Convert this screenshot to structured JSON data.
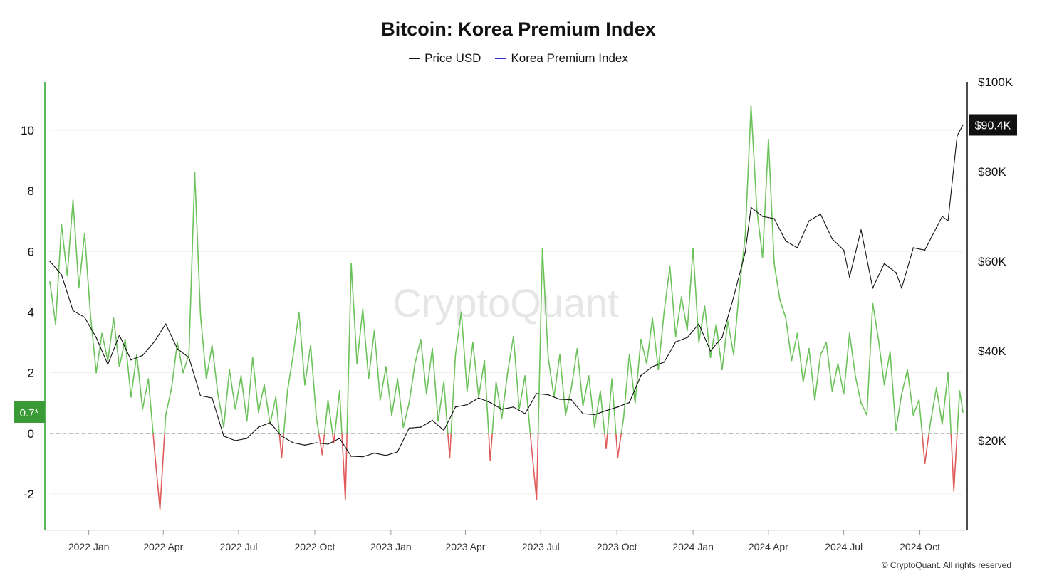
{
  "chart_data": {
    "type": "line",
    "title": "Bitcoin: Korea Premium Index",
    "watermark": "CryptoQuant",
    "footer": "© CryptoQuant. All rights reserved",
    "legend": [
      {
        "label": "Price USD",
        "color": "#111111"
      },
      {
        "label": "Korea Premium Index",
        "color": "#2b2bd6"
      }
    ],
    "legend_position": "top-center",
    "x_range": [
      "2021-11-15",
      "2024-11-22"
    ],
    "x_ticks": [
      {
        "date": "2022-01-01",
        "label": "2022 Jan"
      },
      {
        "date": "2022-04-01",
        "label": "2022 Apr"
      },
      {
        "date": "2022-07-01",
        "label": "2022 Jul"
      },
      {
        "date": "2022-10-01",
        "label": "2022 Oct"
      },
      {
        "date": "2023-01-01",
        "label": "2023 Jan"
      },
      {
        "date": "2023-04-01",
        "label": "2023 Apr"
      },
      {
        "date": "2023-07-01",
        "label": "2023 Jul"
      },
      {
        "date": "2023-10-01",
        "label": "2023 Oct"
      },
      {
        "date": "2024-01-01",
        "label": "2024 Jan"
      },
      {
        "date": "2024-04-01",
        "label": "2024 Apr"
      },
      {
        "date": "2024-07-01",
        "label": "2024 Jul"
      },
      {
        "date": "2024-10-01",
        "label": "2024 Oct"
      }
    ],
    "y_left": {
      "range": [
        -3.2,
        11.6
      ],
      "ticks": [
        {
          "v": 10,
          "label": "10"
        },
        {
          "v": 8,
          "label": "8"
        },
        {
          "v": 6,
          "label": "6"
        },
        {
          "v": 4,
          "label": "4"
        },
        {
          "v": 2,
          "label": "2"
        },
        {
          "v": 0,
          "label": "0"
        },
        {
          "v": -2,
          "label": "-2"
        }
      ],
      "axis_color": "#5cb85c"
    },
    "y_right": {
      "range": [
        0,
        100000
      ],
      "ticks": [
        {
          "v": 100000,
          "label": "$100K"
        },
        {
          "v": 80000,
          "label": "$80K"
        },
        {
          "v": 60000,
          "label": "$60K"
        },
        {
          "v": 40000,
          "label": "$40K"
        },
        {
          "v": 20000,
          "label": "$20K"
        }
      ],
      "axis_color": "#111111"
    },
    "last_premium_label": "0.7*",
    "last_price_label": "$90.4K",
    "colors": {
      "positive": "#6cc25a",
      "negative": "#e05a5a",
      "price": "#111111",
      "grid": "#f0f0f0",
      "zero_line": "#aaaaaa",
      "badge_premium": "#3a9a35",
      "badge_price": "#111111"
    },
    "grid": true,
    "series": [
      {
        "name": "Korea Premium Index",
        "points": [
          [
            "2021-11-15",
            5.0
          ],
          [
            "2021-11-22",
            3.6
          ],
          [
            "2021-11-29",
            6.9
          ],
          [
            "2021-12-06",
            5.2
          ],
          [
            "2021-12-13",
            7.7
          ],
          [
            "2021-12-20",
            4.8
          ],
          [
            "2021-12-27",
            6.6
          ],
          [
            "2022-01-03",
            3.9
          ],
          [
            "2022-01-10",
            2.0
          ],
          [
            "2022-01-17",
            3.3
          ],
          [
            "2022-01-24",
            2.4
          ],
          [
            "2022-01-31",
            3.8
          ],
          [
            "2022-02-07",
            2.2
          ],
          [
            "2022-02-14",
            3.1
          ],
          [
            "2022-02-21",
            1.2
          ],
          [
            "2022-02-28",
            2.6
          ],
          [
            "2022-03-07",
            0.8
          ],
          [
            "2022-03-14",
            1.8
          ],
          [
            "2022-03-21",
            -0.4
          ],
          [
            "2022-03-28",
            -2.5
          ],
          [
            "2022-04-04",
            0.6
          ],
          [
            "2022-04-11",
            1.5
          ],
          [
            "2022-04-18",
            3.0
          ],
          [
            "2022-04-25",
            2.0
          ],
          [
            "2022-05-02",
            2.6
          ],
          [
            "2022-05-09",
            8.6
          ],
          [
            "2022-05-16",
            3.9
          ],
          [
            "2022-05-23",
            1.8
          ],
          [
            "2022-05-30",
            2.9
          ],
          [
            "2022-06-06",
            1.3
          ],
          [
            "2022-06-13",
            0.2
          ],
          [
            "2022-06-20",
            2.1
          ],
          [
            "2022-06-27",
            0.8
          ],
          [
            "2022-07-04",
            1.9
          ],
          [
            "2022-07-11",
            0.4
          ],
          [
            "2022-07-18",
            2.5
          ],
          [
            "2022-07-25",
            0.7
          ],
          [
            "2022-08-01",
            1.6
          ],
          [
            "2022-08-08",
            0.3
          ],
          [
            "2022-08-15",
            1.2
          ],
          [
            "2022-08-22",
            -0.8
          ],
          [
            "2022-08-29",
            1.4
          ],
          [
            "2022-09-05",
            2.6
          ],
          [
            "2022-09-12",
            4.0
          ],
          [
            "2022-09-19",
            1.6
          ],
          [
            "2022-09-26",
            2.9
          ],
          [
            "2022-10-03",
            0.5
          ],
          [
            "2022-10-10",
            -0.7
          ],
          [
            "2022-10-17",
            1.1
          ],
          [
            "2022-10-24",
            -0.3
          ],
          [
            "2022-10-31",
            1.4
          ],
          [
            "2022-11-07",
            -2.2
          ],
          [
            "2022-11-14",
            5.6
          ],
          [
            "2022-11-21",
            2.3
          ],
          [
            "2022-11-28",
            4.1
          ],
          [
            "2022-12-05",
            1.8
          ],
          [
            "2022-12-12",
            3.4
          ],
          [
            "2022-12-19",
            1.1
          ],
          [
            "2022-12-26",
            2.2
          ],
          [
            "2023-01-02",
            0.6
          ],
          [
            "2023-01-09",
            1.8
          ],
          [
            "2023-01-16",
            0.2
          ],
          [
            "2023-01-23",
            1.0
          ],
          [
            "2023-01-30",
            2.3
          ],
          [
            "2023-02-06",
            3.1
          ],
          [
            "2023-02-13",
            1.3
          ],
          [
            "2023-02-20",
            2.8
          ],
          [
            "2023-02-27",
            0.4
          ],
          [
            "2023-03-06",
            1.7
          ],
          [
            "2023-03-13",
            -0.8
          ],
          [
            "2023-03-20",
            2.6
          ],
          [
            "2023-03-27",
            4.0
          ],
          [
            "2023-04-03",
            1.4
          ],
          [
            "2023-04-10",
            3.0
          ],
          [
            "2023-04-17",
            1.2
          ],
          [
            "2023-04-24",
            2.4
          ],
          [
            "2023-05-01",
            -0.9
          ],
          [
            "2023-05-08",
            1.7
          ],
          [
            "2023-05-15",
            0.5
          ],
          [
            "2023-05-22",
            2.0
          ],
          [
            "2023-05-29",
            3.2
          ],
          [
            "2023-06-05",
            0.8
          ],
          [
            "2023-06-12",
            1.9
          ],
          [
            "2023-06-19",
            -0.2
          ],
          [
            "2023-06-26",
            -2.2
          ],
          [
            "2023-07-03",
            6.1
          ],
          [
            "2023-07-10",
            2.5
          ],
          [
            "2023-07-17",
            1.2
          ],
          [
            "2023-07-24",
            2.6
          ],
          [
            "2023-07-31",
            0.6
          ],
          [
            "2023-08-07",
            1.5
          ],
          [
            "2023-08-14",
            2.8
          ],
          [
            "2023-08-21",
            0.9
          ],
          [
            "2023-08-28",
            1.9
          ],
          [
            "2023-09-04",
            0.2
          ],
          [
            "2023-09-11",
            1.4
          ],
          [
            "2023-09-18",
            -0.5
          ],
          [
            "2023-09-25",
            1.8
          ],
          [
            "2023-10-02",
            -0.8
          ],
          [
            "2023-10-09",
            0.5
          ],
          [
            "2023-10-16",
            2.6
          ],
          [
            "2023-10-23",
            1.0
          ],
          [
            "2023-10-30",
            3.1
          ],
          [
            "2023-11-06",
            2.3
          ],
          [
            "2023-11-13",
            3.8
          ],
          [
            "2023-11-20",
            2.1
          ],
          [
            "2023-11-27",
            4.0
          ],
          [
            "2023-12-04",
            5.5
          ],
          [
            "2023-12-11",
            3.2
          ],
          [
            "2023-12-18",
            4.5
          ],
          [
            "2023-12-25",
            3.4
          ],
          [
            "2024-01-01",
            6.1
          ],
          [
            "2024-01-08",
            3.0
          ],
          [
            "2024-01-15",
            4.2
          ],
          [
            "2024-01-22",
            2.5
          ],
          [
            "2024-01-29",
            3.6
          ],
          [
            "2024-02-05",
            2.1
          ],
          [
            "2024-02-12",
            3.7
          ],
          [
            "2024-02-19",
            2.6
          ],
          [
            "2024-02-26",
            4.8
          ],
          [
            "2024-03-04",
            6.5
          ],
          [
            "2024-03-11",
            10.8
          ],
          [
            "2024-03-18",
            7.4
          ],
          [
            "2024-03-25",
            5.8
          ],
          [
            "2024-04-01",
            9.7
          ],
          [
            "2024-04-08",
            5.6
          ],
          [
            "2024-04-15",
            4.4
          ],
          [
            "2024-04-22",
            3.8
          ],
          [
            "2024-04-29",
            2.4
          ],
          [
            "2024-05-06",
            3.3
          ],
          [
            "2024-05-13",
            1.7
          ],
          [
            "2024-05-20",
            2.8
          ],
          [
            "2024-05-27",
            1.1
          ],
          [
            "2024-06-03",
            2.6
          ],
          [
            "2024-06-10",
            3.0
          ],
          [
            "2024-06-17",
            1.4
          ],
          [
            "2024-06-24",
            2.3
          ],
          [
            "2024-07-01",
            1.3
          ],
          [
            "2024-07-08",
            3.3
          ],
          [
            "2024-07-15",
            1.9
          ],
          [
            "2024-07-22",
            1.0
          ],
          [
            "2024-07-29",
            0.6
          ],
          [
            "2024-08-05",
            4.3
          ],
          [
            "2024-08-12",
            3.1
          ],
          [
            "2024-08-19",
            1.6
          ],
          [
            "2024-08-26",
            2.7
          ],
          [
            "2024-09-02",
            0.1
          ],
          [
            "2024-09-09",
            1.3
          ],
          [
            "2024-09-16",
            2.1
          ],
          [
            "2024-09-23",
            0.6
          ],
          [
            "2024-09-30",
            1.1
          ],
          [
            "2024-10-07",
            -1.0
          ],
          [
            "2024-10-14",
            0.4
          ],
          [
            "2024-10-21",
            1.5
          ],
          [
            "2024-10-28",
            0.3
          ],
          [
            "2024-11-04",
            2.0
          ],
          [
            "2024-11-11",
            -1.9
          ],
          [
            "2024-11-18",
            1.4
          ],
          [
            "2024-11-22",
            0.7
          ]
        ]
      },
      {
        "name": "Price USD",
        "points": [
          [
            "2021-11-15",
            60000
          ],
          [
            "2021-11-29",
            57000
          ],
          [
            "2021-12-13",
            49000
          ],
          [
            "2021-12-27",
            47500
          ],
          [
            "2022-01-10",
            43000
          ],
          [
            "2022-01-24",
            37000
          ],
          [
            "2022-02-07",
            43500
          ],
          [
            "2022-02-21",
            38000
          ],
          [
            "2022-03-07",
            39000
          ],
          [
            "2022-03-21",
            42000
          ],
          [
            "2022-04-04",
            46000
          ],
          [
            "2022-04-18",
            40500
          ],
          [
            "2022-05-02",
            38500
          ],
          [
            "2022-05-16",
            30000
          ],
          [
            "2022-05-30",
            29500
          ],
          [
            "2022-06-13",
            21000
          ],
          [
            "2022-06-27",
            20000
          ],
          [
            "2022-07-11",
            20500
          ],
          [
            "2022-07-25",
            23000
          ],
          [
            "2022-08-08",
            24000
          ],
          [
            "2022-08-22",
            21000
          ],
          [
            "2022-09-05",
            19500
          ],
          [
            "2022-09-19",
            19000
          ],
          [
            "2022-10-03",
            19500
          ],
          [
            "2022-10-17",
            19200
          ],
          [
            "2022-10-31",
            20500
          ],
          [
            "2022-11-14",
            16500
          ],
          [
            "2022-11-28",
            16400
          ],
          [
            "2022-12-12",
            17200
          ],
          [
            "2022-12-26",
            16700
          ],
          [
            "2023-01-09",
            17500
          ],
          [
            "2023-01-23",
            22800
          ],
          [
            "2023-02-06",
            23000
          ],
          [
            "2023-02-20",
            24500
          ],
          [
            "2023-03-06",
            22300
          ],
          [
            "2023-03-20",
            27500
          ],
          [
            "2023-04-03",
            28000
          ],
          [
            "2023-04-17",
            29500
          ],
          [
            "2023-05-01",
            28500
          ],
          [
            "2023-05-15",
            27000
          ],
          [
            "2023-05-29",
            27500
          ],
          [
            "2023-06-12",
            26000
          ],
          [
            "2023-06-26",
            30500
          ],
          [
            "2023-07-10",
            30200
          ],
          [
            "2023-07-24",
            29200
          ],
          [
            "2023-08-07",
            29100
          ],
          [
            "2023-08-21",
            26000
          ],
          [
            "2023-09-04",
            25800
          ],
          [
            "2023-09-18",
            26700
          ],
          [
            "2023-10-02",
            27500
          ],
          [
            "2023-10-16",
            28500
          ],
          [
            "2023-10-30",
            34500
          ],
          [
            "2023-11-13",
            36500
          ],
          [
            "2023-11-27",
            37500
          ],
          [
            "2023-12-11",
            42000
          ],
          [
            "2023-12-25",
            43000
          ],
          [
            "2024-01-08",
            46000
          ],
          [
            "2024-01-22",
            40000
          ],
          [
            "2024-02-05",
            43000
          ],
          [
            "2024-02-19",
            52000
          ],
          [
            "2024-03-04",
            62000
          ],
          [
            "2024-03-11",
            72000
          ],
          [
            "2024-03-25",
            70000
          ],
          [
            "2024-04-08",
            69500
          ],
          [
            "2024-04-22",
            64500
          ],
          [
            "2024-05-06",
            63000
          ],
          [
            "2024-05-20",
            69000
          ],
          [
            "2024-06-03",
            70500
          ],
          [
            "2024-06-17",
            65000
          ],
          [
            "2024-07-01",
            62500
          ],
          [
            "2024-07-08",
            56500
          ],
          [
            "2024-07-22",
            67000
          ],
          [
            "2024-08-05",
            54000
          ],
          [
            "2024-08-19",
            59500
          ],
          [
            "2024-09-02",
            57500
          ],
          [
            "2024-09-09",
            54000
          ],
          [
            "2024-09-23",
            63000
          ],
          [
            "2024-10-07",
            62500
          ],
          [
            "2024-10-21",
            67500
          ],
          [
            "2024-10-28",
            70000
          ],
          [
            "2024-11-04",
            69000
          ],
          [
            "2024-11-11",
            81000
          ],
          [
            "2024-11-15",
            88000
          ],
          [
            "2024-11-22",
            90400
          ]
        ]
      }
    ]
  }
}
